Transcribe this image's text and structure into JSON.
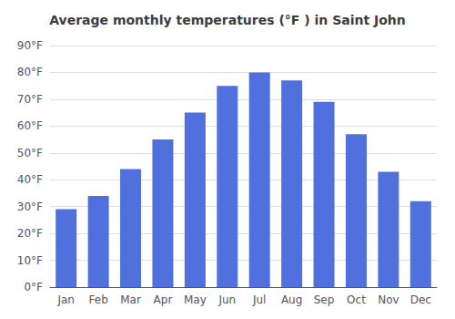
{
  "chart_data": {
    "type": "bar",
    "title": "Average monthly temperatures (°F ) in Saint John",
    "categories": [
      "Jan",
      "Feb",
      "Mar",
      "Apr",
      "May",
      "Jun",
      "Jul",
      "Aug",
      "Sep",
      "Oct",
      "Nov",
      "Dec"
    ],
    "values": [
      29,
      34,
      44,
      55,
      65,
      75,
      80,
      77,
      69,
      57,
      43,
      32
    ],
    "ylim": [
      0,
      90
    ],
    "yticks": [
      {
        "value": 0,
        "label": "0°F"
      },
      {
        "value": 10,
        "label": "10°F"
      },
      {
        "value": 20,
        "label": "20°F"
      },
      {
        "value": 30,
        "label": "30°F"
      },
      {
        "value": 40,
        "label": "40°F"
      },
      {
        "value": 50,
        "label": "50°F"
      },
      {
        "value": 60,
        "label": "60°F"
      },
      {
        "value": 70,
        "label": "70°F"
      },
      {
        "value": 80,
        "label": "80°F"
      },
      {
        "value": 90,
        "label": "90°F"
      }
    ],
    "grid": true
  }
}
